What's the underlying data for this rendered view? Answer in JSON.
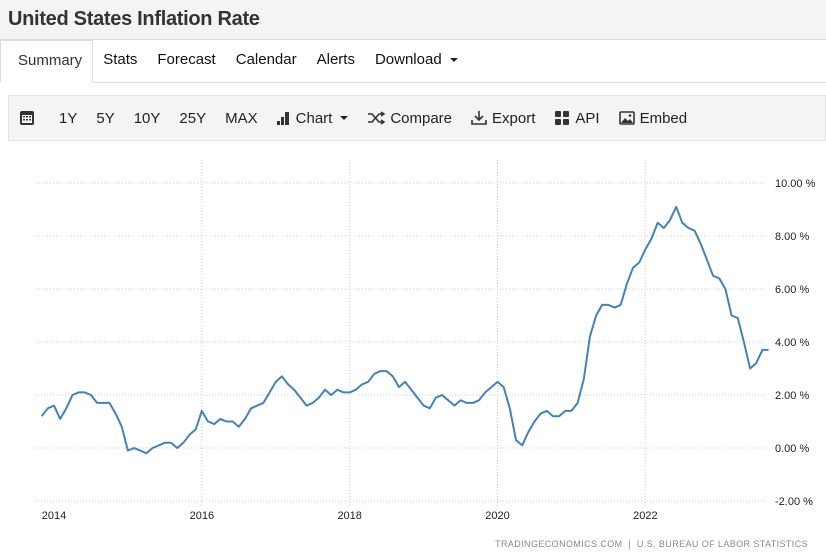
{
  "header": {
    "title": "United States Inflation Rate"
  },
  "tabs": [
    {
      "label": "Summary"
    },
    {
      "label": "Stats"
    },
    {
      "label": "Forecast"
    },
    {
      "label": "Calendar"
    },
    {
      "label": "Alerts"
    },
    {
      "label": "Download"
    }
  ],
  "toolbar": {
    "ranges": [
      "1Y",
      "5Y",
      "10Y",
      "25Y",
      "MAX"
    ],
    "chart": "Chart",
    "compare": "Compare",
    "export": "Export",
    "api": "API",
    "embed": "Embed"
  },
  "footer": "TRADINGECONOMICS.COM  |  U.S. BUREAU OF LABOR STATISTICS",
  "chart_data": {
    "type": "line",
    "title": "United States Inflation Rate",
    "start": "2013-11",
    "frequency": "monthly",
    "end": "2023-09",
    "values": [
      1.2,
      1.5,
      1.6,
      1.1,
      1.5,
      2.0,
      2.1,
      2.1,
      2.0,
      1.7,
      1.7,
      1.7,
      1.3,
      0.8,
      -0.1,
      0.0,
      -0.1,
      -0.2,
      0.0,
      0.1,
      0.2,
      0.2,
      0.0,
      0.2,
      0.5,
      0.7,
      1.4,
      1.0,
      0.9,
      1.1,
      1.0,
      1.0,
      0.8,
      1.1,
      1.5,
      1.6,
      1.7,
      2.1,
      2.5,
      2.7,
      2.4,
      2.2,
      1.9,
      1.6,
      1.7,
      1.9,
      2.2,
      2.0,
      2.2,
      2.1,
      2.1,
      2.2,
      2.4,
      2.5,
      2.8,
      2.9,
      2.9,
      2.7,
      2.3,
      2.5,
      2.2,
      1.9,
      1.6,
      1.5,
      1.9,
      2.0,
      1.8,
      1.6,
      1.8,
      1.7,
      1.7,
      1.8,
      2.1,
      2.3,
      2.5,
      2.3,
      1.5,
      0.3,
      0.1,
      0.6,
      1.0,
      1.3,
      1.4,
      1.2,
      1.2,
      1.4,
      1.4,
      1.7,
      2.6,
      4.2,
      5.0,
      5.4,
      5.4,
      5.3,
      5.4,
      6.2,
      6.8,
      7.0,
      7.5,
      7.9,
      8.5,
      8.3,
      8.6,
      9.1,
      8.5,
      8.3,
      8.2,
      7.7,
      7.1,
      6.5,
      6.4,
      6.0,
      5.0,
      4.9,
      4.0,
      3.0,
      3.2,
      3.7,
      3.7
    ],
    "ylim": [
      -2,
      10
    ],
    "yticks": [
      "10.00 %",
      "8.00 %",
      "6.00 %",
      "4.00 %",
      "2.00 %",
      "0.00 %",
      "-2.00 %"
    ],
    "ytick_values": [
      10,
      8,
      6,
      4,
      2,
      0,
      -2
    ],
    "xticks": [
      "2014",
      "2016",
      "2018",
      "2020",
      "2022"
    ],
    "xtick_values": [
      2014,
      2016,
      2018,
      2020,
      2022
    ],
    "grid": true,
    "series_color": "#4682b4",
    "ylabel": "",
    "xlabel": ""
  }
}
